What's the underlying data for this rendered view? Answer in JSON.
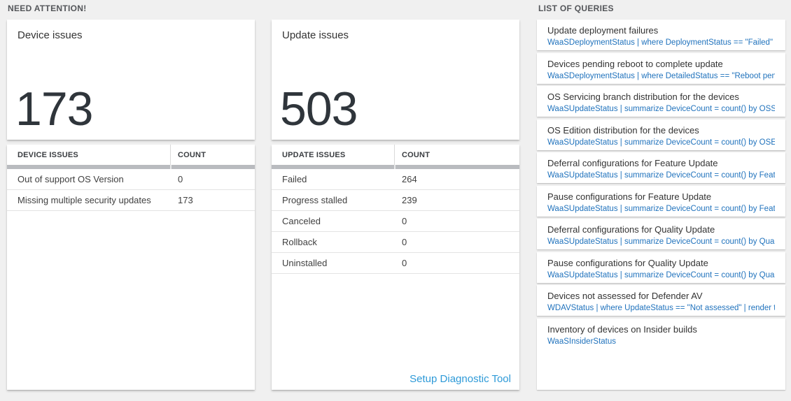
{
  "sections": {
    "need_attention": "NEED ATTENTION!",
    "list_of_queries": "LIST OF QUERIES"
  },
  "device_card": {
    "title": "Device issues",
    "count": "173",
    "table": {
      "header_name": "DEVICE ISSUES",
      "header_count": "COUNT",
      "rows": [
        {
          "label": "Out of support OS Version",
          "count": "0"
        },
        {
          "label": "Missing multiple security updates",
          "count": "173"
        }
      ]
    }
  },
  "update_card": {
    "title": "Update issues",
    "count": "503",
    "table": {
      "header_name": "UPDATE ISSUES",
      "header_count": "COUNT",
      "rows": [
        {
          "label": "Failed",
          "count": "264"
        },
        {
          "label": "Progress stalled",
          "count": "239"
        },
        {
          "label": "Canceled",
          "count": "0"
        },
        {
          "label": "Rollback",
          "count": "0"
        },
        {
          "label": "Uninstalled",
          "count": "0"
        }
      ]
    },
    "setup_link": "Setup Diagnostic Tool"
  },
  "queries": [
    {
      "title": "Update deployment failures",
      "query": "WaaSDeploymentStatus | where DeploymentStatus == \"Failed\" |..."
    },
    {
      "title": "Devices pending reboot to complete update",
      "query": "WaaSDeploymentStatus | where DetailedStatus == \"Reboot pend..."
    },
    {
      "title": "OS Servicing branch distribution for the devices",
      "query": "WaaSUpdateStatus | summarize DeviceCount = count() by OSSer..."
    },
    {
      "title": "OS Edition distribution for the devices",
      "query": "WaaSUpdateStatus | summarize DeviceCount = count() by OSEdit..."
    },
    {
      "title": "Deferral configurations for Feature Update",
      "query": "WaaSUpdateStatus | summarize DeviceCount = count() by Featur..."
    },
    {
      "title": "Pause configurations for Feature Update",
      "query": "WaaSUpdateStatus | summarize DeviceCount = count() by Featur..."
    },
    {
      "title": "Deferral configurations for Quality Update",
      "query": "WaaSUpdateStatus | summarize DeviceCount = count() by Qualit..."
    },
    {
      "title": "Pause configurations for Quality Update",
      "query": "WaaSUpdateStatus | summarize DeviceCount = count() by Qualit..."
    },
    {
      "title": "Devices not assessed for Defender AV",
      "query": "WDAVStatus | where UpdateStatus == \"Not assessed\" | render ta..."
    },
    {
      "title": "Inventory of devices on Insider builds",
      "query": "WaaSInsiderStatus"
    }
  ],
  "colors": {
    "query_link": "#2173bd",
    "setup_link": "#2e9ad8",
    "accent_number": "#2f353b"
  }
}
